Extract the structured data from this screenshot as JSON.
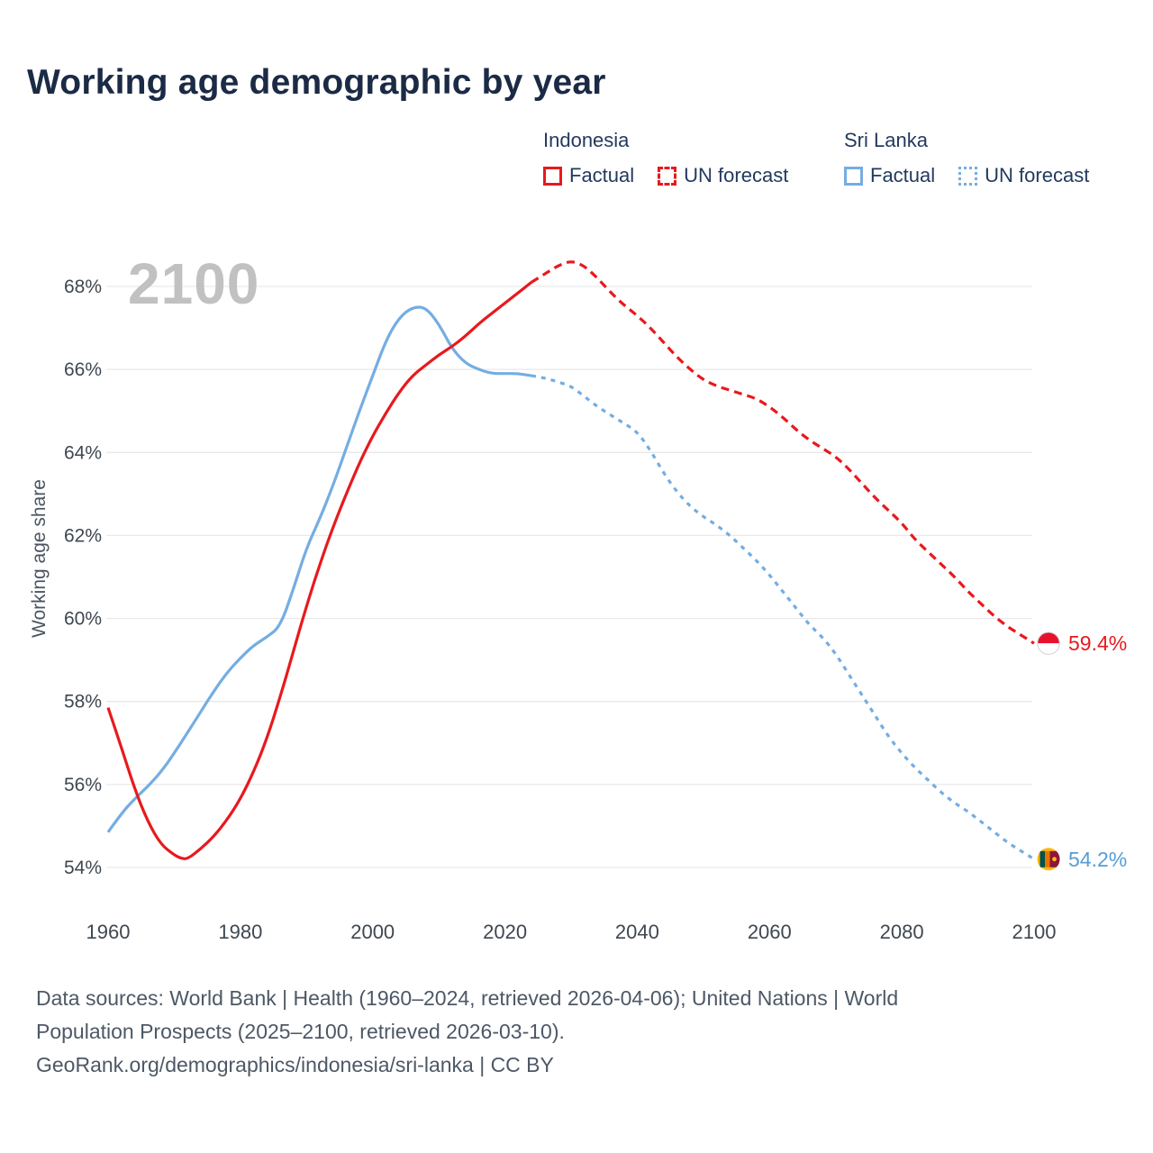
{
  "title": "Working age demographic by year",
  "watermark": "2100",
  "colors": {
    "indonesia": "#e8191d",
    "sri_lanka": "#74ade2",
    "title_text": "#1b2a45",
    "legend_text": "#233a5e",
    "axis_text": "#3f4750",
    "grid": "#e9e9e9",
    "watermark": "#c1c1c1",
    "footer_text": "#4d5866"
  },
  "legend": {
    "groups": [
      {
        "country": "Indonesia",
        "color": "#e8191d",
        "items": [
          {
            "label": "Factual",
            "style": "solid"
          },
          {
            "label": "UN forecast",
            "style": "dashed"
          }
        ]
      },
      {
        "country": "Sri Lanka",
        "color": "#74ade2",
        "items": [
          {
            "label": "Factual",
            "style": "solid"
          },
          {
            "label": "UN forecast",
            "style": "dotted"
          }
        ]
      }
    ]
  },
  "end_labels": [
    {
      "series": "Indonesia",
      "text": "59.4%",
      "color": "#e8191d",
      "flag": "indonesia-flag"
    },
    {
      "series": "Sri Lanka",
      "text": "54.2%",
      "color": "#579dd6",
      "flag": "sri-lanka-flag"
    }
  ],
  "flags": {
    "indonesia": {
      "top": "#e8112d",
      "bottom": "#ffffff"
    },
    "sri_lanka": {
      "gold": "#fdb913",
      "green": "#00534e",
      "orange": "#eb7400",
      "maroon": "#8d153a"
    }
  },
  "footer": {
    "lines": [
      "Data sources: World Bank | Health (1960–2024, retrieved 2026-04-06); United Nations | World",
      "Population Prospects (2025–2100, retrieved 2026-03-10).",
      "GeoRank.org/demographics/indonesia/sri-lanka | CC BY"
    ]
  },
  "chart_data": {
    "type": "line",
    "title": "Working age demographic by year",
    "xlabel": "",
    "ylabel": "Working age share",
    "x_ticks": [
      1960,
      1980,
      2000,
      2020,
      2040,
      2060,
      2080,
      2100
    ],
    "y_ticks": [
      54,
      56,
      58,
      60,
      62,
      64,
      66,
      68
    ],
    "xlim": [
      1960,
      2100
    ],
    "ylim": [
      53,
      69.5
    ],
    "grid": "horizontal",
    "legend_position": "top-right",
    "series": [
      {
        "id": "indonesia-factual",
        "name": "Indonesia — Factual",
        "color": "#e8191d",
        "dash": "solid",
        "points": [
          [
            1960,
            57.85
          ],
          [
            1962,
            56.9
          ],
          [
            1964,
            55.9
          ],
          [
            1966,
            55.1
          ],
          [
            1968,
            54.55
          ],
          [
            1970,
            54.3
          ],
          [
            1971,
            54.22
          ],
          [
            1972,
            54.2
          ],
          [
            1974,
            54.45
          ],
          [
            1976,
            54.75
          ],
          [
            1978,
            55.15
          ],
          [
            1980,
            55.65
          ],
          [
            1982,
            56.3
          ],
          [
            1984,
            57.1
          ],
          [
            1986,
            58.1
          ],
          [
            1988,
            59.2
          ],
          [
            1990,
            60.3
          ],
          [
            1992,
            61.3
          ],
          [
            1994,
            62.2
          ],
          [
            1996,
            63.0
          ],
          [
            1998,
            63.75
          ],
          [
            2000,
            64.4
          ],
          [
            2002,
            64.95
          ],
          [
            2004,
            65.45
          ],
          [
            2006,
            65.85
          ],
          [
            2008,
            66.1
          ],
          [
            2010,
            66.35
          ],
          [
            2012,
            66.55
          ],
          [
            2014,
            66.8
          ],
          [
            2016,
            67.1
          ],
          [
            2018,
            67.35
          ],
          [
            2020,
            67.6
          ],
          [
            2022,
            67.85
          ],
          [
            2024,
            68.1
          ]
        ]
      },
      {
        "id": "indonesia-forecast",
        "name": "Indonesia — UN forecast",
        "color": "#e8191d",
        "dash": "dashed",
        "points": [
          [
            2024,
            68.1
          ],
          [
            2026,
            68.3
          ],
          [
            2028,
            68.5
          ],
          [
            2030,
            68.62
          ],
          [
            2032,
            68.5
          ],
          [
            2034,
            68.2
          ],
          [
            2036,
            67.85
          ],
          [
            2038,
            67.55
          ],
          [
            2040,
            67.3
          ],
          [
            2042,
            67.0
          ],
          [
            2044,
            66.65
          ],
          [
            2046,
            66.3
          ],
          [
            2048,
            66.0
          ],
          [
            2050,
            65.75
          ],
          [
            2052,
            65.6
          ],
          [
            2054,
            65.5
          ],
          [
            2056,
            65.4
          ],
          [
            2058,
            65.3
          ],
          [
            2060,
            65.1
          ],
          [
            2062,
            64.85
          ],
          [
            2064,
            64.55
          ],
          [
            2066,
            64.3
          ],
          [
            2068,
            64.1
          ],
          [
            2070,
            63.9
          ],
          [
            2072,
            63.6
          ],
          [
            2074,
            63.25
          ],
          [
            2076,
            62.9
          ],
          [
            2078,
            62.6
          ],
          [
            2080,
            62.3
          ],
          [
            2082,
            61.9
          ],
          [
            2084,
            61.6
          ],
          [
            2086,
            61.3
          ],
          [
            2088,
            61.0
          ],
          [
            2090,
            60.65
          ],
          [
            2092,
            60.35
          ],
          [
            2094,
            60.05
          ],
          [
            2096,
            59.8
          ],
          [
            2098,
            59.6
          ],
          [
            2100,
            59.4
          ]
        ]
      },
      {
        "id": "sri-lanka-factual",
        "name": "Sri Lanka — Factual",
        "color": "#74ade2",
        "dash": "solid",
        "points": [
          [
            1960,
            54.85
          ],
          [
            1962,
            55.3
          ],
          [
            1964,
            55.65
          ],
          [
            1966,
            55.95
          ],
          [
            1968,
            56.3
          ],
          [
            1970,
            56.75
          ],
          [
            1972,
            57.25
          ],
          [
            1974,
            57.75
          ],
          [
            1976,
            58.25
          ],
          [
            1978,
            58.7
          ],
          [
            1980,
            59.05
          ],
          [
            1982,
            59.35
          ],
          [
            1984,
            59.55
          ],
          [
            1986,
            59.8
          ],
          [
            1988,
            60.7
          ],
          [
            1990,
            61.7
          ],
          [
            1992,
            62.4
          ],
          [
            1994,
            63.2
          ],
          [
            1996,
            64.1
          ],
          [
            1998,
            65.0
          ],
          [
            2000,
            65.85
          ],
          [
            2002,
            66.7
          ],
          [
            2004,
            67.25
          ],
          [
            2006,
            67.5
          ],
          [
            2008,
            67.5
          ],
          [
            2010,
            67.1
          ],
          [
            2012,
            66.5
          ],
          [
            2014,
            66.15
          ],
          [
            2016,
            66.0
          ],
          [
            2018,
            65.9
          ],
          [
            2020,
            65.9
          ],
          [
            2022,
            65.9
          ],
          [
            2024,
            65.85
          ]
        ]
      },
      {
        "id": "sri-lanka-forecast",
        "name": "Sri Lanka — UN forecast",
        "color": "#74ade2",
        "dash": "dotted",
        "points": [
          [
            2024,
            65.85
          ],
          [
            2026,
            65.8
          ],
          [
            2028,
            65.7
          ],
          [
            2030,
            65.6
          ],
          [
            2032,
            65.35
          ],
          [
            2034,
            65.1
          ],
          [
            2036,
            64.9
          ],
          [
            2038,
            64.7
          ],
          [
            2040,
            64.5
          ],
          [
            2042,
            64.05
          ],
          [
            2044,
            63.5
          ],
          [
            2046,
            63.05
          ],
          [
            2048,
            62.7
          ],
          [
            2050,
            62.45
          ],
          [
            2052,
            62.25
          ],
          [
            2054,
            62.0
          ],
          [
            2056,
            61.7
          ],
          [
            2058,
            61.4
          ],
          [
            2060,
            61.05
          ],
          [
            2062,
            60.65
          ],
          [
            2064,
            60.25
          ],
          [
            2066,
            59.85
          ],
          [
            2068,
            59.55
          ],
          [
            2070,
            59.15
          ],
          [
            2072,
            58.65
          ],
          [
            2074,
            58.15
          ],
          [
            2076,
            57.65
          ],
          [
            2078,
            57.15
          ],
          [
            2080,
            56.75
          ],
          [
            2082,
            56.4
          ],
          [
            2084,
            56.1
          ],
          [
            2086,
            55.8
          ],
          [
            2088,
            55.55
          ],
          [
            2090,
            55.35
          ],
          [
            2092,
            55.1
          ],
          [
            2094,
            54.85
          ],
          [
            2096,
            54.6
          ],
          [
            2098,
            54.4
          ],
          [
            2100,
            54.2
          ]
        ]
      }
    ]
  }
}
